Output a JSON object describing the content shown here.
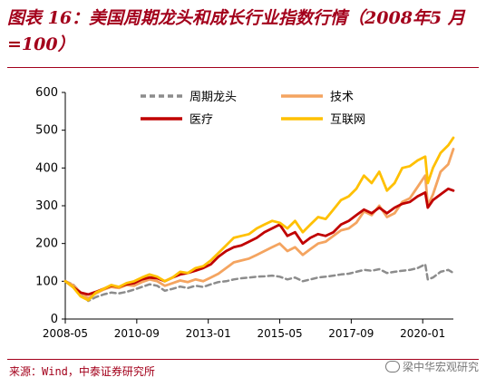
{
  "header": {
    "title": "图表 16：美国周期龙头和成长行业指数行情（2008年5 月=100）"
  },
  "footer": {
    "source": "来源：Wind，中泰证券研究所",
    "watermark": "梁中华宏观研究"
  },
  "chart_data": {
    "type": "line",
    "title": "图表 16：美国周期龙头和成长行业指数行情（2008年5 月=100）",
    "xlabel": "",
    "ylabel": "",
    "x_start": "2008-05",
    "x_end": "2021-01",
    "xticks": [
      "2008-05",
      "2010-09",
      "2013-01",
      "2015-05",
      "2017-09",
      "2020-01"
    ],
    "ylim": [
      0,
      600
    ],
    "yticks": [
      0,
      100,
      200,
      300,
      400,
      500,
      600
    ],
    "grid": false,
    "legend": "top-center",
    "x": [
      "2008-05",
      "2008-08",
      "2008-11",
      "2009-02",
      "2009-05",
      "2009-08",
      "2009-11",
      "2010-02",
      "2010-05",
      "2010-08",
      "2010-11",
      "2011-02",
      "2011-05",
      "2011-08",
      "2011-11",
      "2012-02",
      "2012-05",
      "2012-08",
      "2012-11",
      "2013-02",
      "2013-05",
      "2013-08",
      "2013-11",
      "2014-02",
      "2014-05",
      "2014-08",
      "2014-11",
      "2015-02",
      "2015-05",
      "2015-08",
      "2015-11",
      "2016-02",
      "2016-05",
      "2016-08",
      "2016-11",
      "2017-02",
      "2017-05",
      "2017-08",
      "2017-11",
      "2018-02",
      "2018-05",
      "2018-08",
      "2018-11",
      "2019-02",
      "2019-05",
      "2019-08",
      "2019-11",
      "2020-02",
      "2020-03",
      "2020-05",
      "2020-08",
      "2020-11",
      "2021-01"
    ],
    "series": [
      {
        "name": "周期龙头",
        "color": "#8c8c8c",
        "style": "dashed",
        "values": [
          100,
          92,
          70,
          48,
          58,
          65,
          70,
          68,
          72,
          78,
          85,
          92,
          88,
          75,
          80,
          86,
          82,
          88,
          85,
          92,
          98,
          100,
          105,
          108,
          110,
          112,
          113,
          115,
          112,
          105,
          110,
          100,
          105,
          110,
          112,
          115,
          118,
          120,
          125,
          130,
          128,
          132,
          122,
          125,
          128,
          130,
          135,
          145,
          105,
          110,
          125,
          130,
          122
        ]
      },
      {
        "name": "技术",
        "color": "#f4a460",
        "style": "solid",
        "values": [
          100,
          90,
          70,
          55,
          68,
          78,
          85,
          82,
          90,
          88,
          98,
          105,
          100,
          88,
          95,
          102,
          98,
          105,
          100,
          110,
          120,
          135,
          150,
          155,
          160,
          170,
          180,
          190,
          200,
          180,
          190,
          170,
          185,
          200,
          205,
          220,
          235,
          240,
          255,
          285,
          275,
          300,
          270,
          280,
          310,
          320,
          350,
          380,
          300,
          330,
          390,
          410,
          450
        ]
      },
      {
        "name": "医疗",
        "color": "#c00000",
        "style": "solid",
        "values": [
          100,
          85,
          70,
          65,
          72,
          80,
          88,
          85,
          92,
          95,
          105,
          110,
          108,
          100,
          110,
          118,
          122,
          128,
          135,
          145,
          165,
          180,
          190,
          195,
          205,
          215,
          230,
          240,
          250,
          220,
          230,
          200,
          215,
          225,
          220,
          230,
          250,
          260,
          275,
          290,
          280,
          295,
          280,
          295,
          305,
          310,
          325,
          335,
          295,
          315,
          330,
          345,
          340
        ]
      },
      {
        "name": "互联网",
        "color": "#ffc000",
        "style": "solid",
        "values": [
          100,
          85,
          60,
          50,
          70,
          80,
          90,
          85,
          95,
          100,
          110,
          118,
          112,
          100,
          110,
          125,
          122,
          135,
          140,
          155,
          175,
          195,
          215,
          220,
          225,
          240,
          250,
          260,
          255,
          240,
          260,
          230,
          250,
          270,
          265,
          290,
          315,
          325,
          345,
          380,
          360,
          390,
          340,
          360,
          400,
          405,
          420,
          430,
          360,
          400,
          440,
          460,
          480
        ]
      }
    ]
  }
}
